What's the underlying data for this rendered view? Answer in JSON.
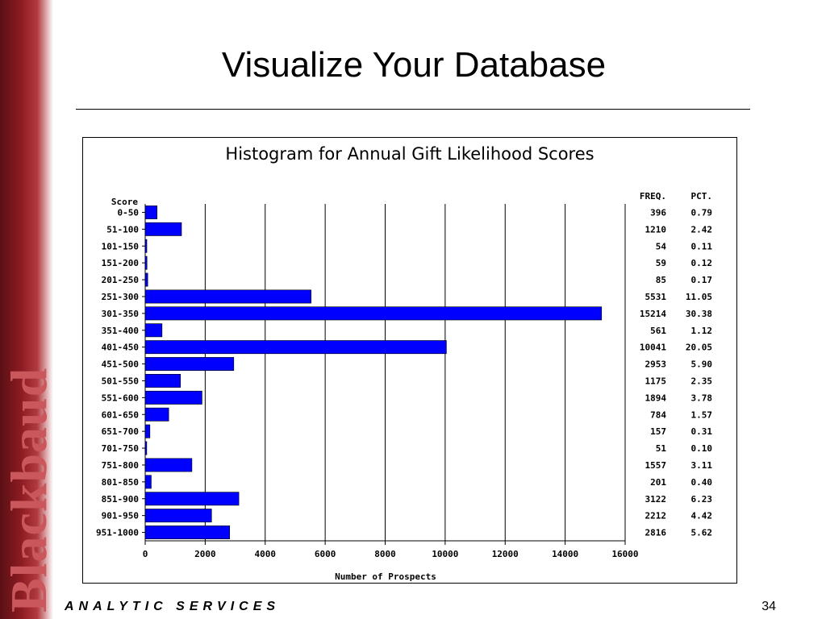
{
  "slide": {
    "title": "Visualize Your Database",
    "footer_left": "ANALYTIC SERVICES",
    "page_number": "34",
    "brand": "Blackbaud"
  },
  "chart_data": {
    "type": "bar",
    "orientation": "horizontal",
    "title": "Histogram for Annual Gift Likelihood Scores",
    "category_header": "Score",
    "xlabel": "Number of Prospects",
    "xlim": [
      0,
      16000
    ],
    "xticks": [
      0,
      2000,
      4000,
      6000,
      8000,
      10000,
      12000,
      14000,
      16000
    ],
    "grid": true,
    "bar_color": "#0000ff",
    "freq_header": "FREQ.",
    "pct_header": "PCT.",
    "categories": [
      "0-50",
      "51-100",
      "101-150",
      "151-200",
      "201-250",
      "251-300",
      "301-350",
      "351-400",
      "401-450",
      "451-500",
      "501-550",
      "551-600",
      "601-650",
      "651-700",
      "701-750",
      "751-800",
      "801-850",
      "851-900",
      "901-950",
      "951-1000"
    ],
    "freq": [
      396,
      1210,
      54,
      59,
      85,
      5531,
      15214,
      561,
      10041,
      2953,
      1175,
      1894,
      784,
      157,
      51,
      1557,
      201,
      3122,
      2212,
      2816
    ],
    "pct": [
      "0.79",
      "2.42",
      "0.11",
      "0.12",
      "0.17",
      "11.05",
      "30.38",
      "1.12",
      "20.05",
      "5.90",
      "2.35",
      "3.78",
      "1.57",
      "0.31",
      "0.10",
      "3.11",
      "0.40",
      "6.23",
      "4.42",
      "5.62"
    ]
  }
}
